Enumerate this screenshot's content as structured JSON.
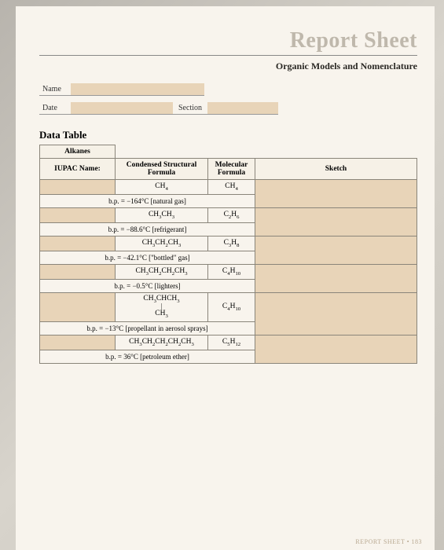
{
  "title": "Report Sheet",
  "subtitle": "Organic Models and Nomenclature",
  "meta": {
    "name_label": "Name",
    "date_label": "Date",
    "section_label": "Section"
  },
  "section_title": "Data Table",
  "tab_label": "Alkanes",
  "headers": {
    "iupac": "IUPAC Name:",
    "struct": "Condensed Structural Formula",
    "mol": "Molecular Formula",
    "sketch": "Sketch"
  },
  "rows": [
    {
      "struct_html": "CH<sub>4</sub>",
      "mol_html": "CH<sub>4</sub>",
      "note": "b.p. = −164°C   [natural gas]"
    },
    {
      "struct_html": "CH<sub>3</sub>CH<sub>3</sub>",
      "mol_html": "C<sub>2</sub>H<sub>6</sub>",
      "note": "b.p. = −88.6°C   [refrigerant]"
    },
    {
      "struct_html": "CH<sub>3</sub>CH<sub>2</sub>CH<sub>3</sub>",
      "mol_html": "C<sub>3</sub>H<sub>8</sub>",
      "note": "b.p. = −42.1°C   [\"bottled\" gas]"
    },
    {
      "struct_html": "CH<sub>3</sub>CH<sub>2</sub>CH<sub>2</sub>CH<sub>3</sub>",
      "mol_html": "C<sub>4</sub>H<sub>10</sub>",
      "note": "b.p. = −0.5°C   [lighters]"
    },
    {
      "struct_stack": [
        "CH<sub>3</sub>CHCH<sub>3</sub>",
        "|",
        "CH<sub>3</sub>"
      ],
      "mol_html": "C<sub>4</sub>H<sub>10</sub>",
      "note": "b.p. = −13°C   [propellant in aerosol sprays]"
    },
    {
      "struct_html": "CH<sub>3</sub>CH<sub>2</sub>CH<sub>2</sub>CH<sub>2</sub>CH<sub>3</sub>",
      "mol_html": "C<sub>5</sub>H<sub>12</sub>",
      "note": "b.p. = 36°C   [petroleum ether]"
    }
  ],
  "footer": "REPORT SHEET • 183",
  "colors": {
    "fill": "#e8d4b8",
    "page_bg": "#f8f4ed",
    "title_gray": "#bfb8ac",
    "border": "#8a857a"
  }
}
